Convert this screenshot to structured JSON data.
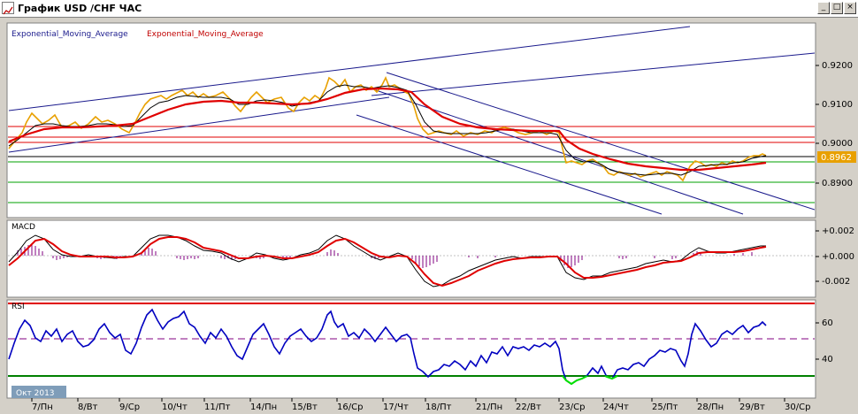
{
  "window": {
    "title": "График USD /CHF  ЧАС",
    "buttons": [
      "_",
      "□",
      "×"
    ]
  },
  "main_panel": {
    "legend_blue": "Exponential_Moving_Average",
    "legend_red": "Exponential_Moving_Average",
    "price_ticks": [
      "0.9200",
      "0.9100",
      "0.9000",
      "0.8900"
    ],
    "current_price": "0.8962"
  },
  "macd_panel": {
    "label": "MACD",
    "ticks": [
      "+0.002",
      "+0.000",
      "-0.002"
    ]
  },
  "rsi_panel": {
    "label": "RSI",
    "ticks": [
      "60",
      "40"
    ]
  },
  "x_axis": {
    "month_label": "Окт 2013",
    "ticks": [
      "7/Пн",
      "8/Вт",
      "9/Ср",
      "10/Чт",
      "11/Пт",
      "14/Пн",
      "15/Вт",
      "16/Ср",
      "17/Чт",
      "18/Пт",
      "21/Пн",
      "22/Вт",
      "23/Ср",
      "24/Чт",
      "25/Пт",
      "28/Пн",
      "29/Вт",
      "30/Ср"
    ]
  },
  "colors": {
    "price": "#e8a000",
    "ema_fast": "#000000",
    "ema_slow": "#e00000",
    "channel": "#1a1a8c",
    "support": "#00a000",
    "resistance": "#e00000",
    "rsi": "#0000c0",
    "rsi_oversold": "#00e000",
    "macd_hist": "#800080",
    "current_price_bg": "#e8a000"
  }
}
